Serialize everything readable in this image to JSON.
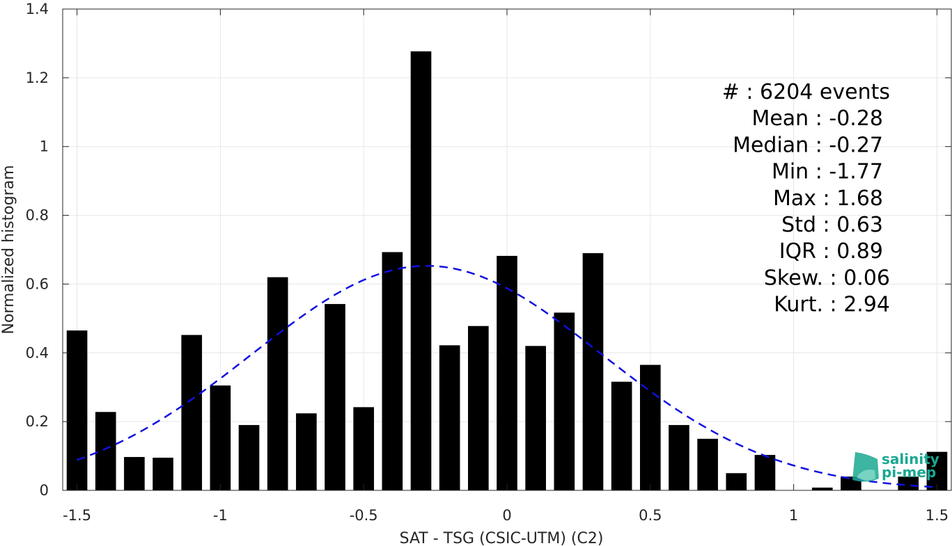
{
  "chart_data": {
    "type": "bar",
    "xlabel": "SAT - TSG (CSIC-UTM) (C2)",
    "ylabel": "Normalized histogram",
    "xlim": [
      -1.55,
      1.55
    ],
    "ylim": [
      0,
      1.4
    ],
    "xticks": [
      -1.5,
      -1,
      -0.5,
      0,
      0.5,
      1,
      1.5
    ],
    "xtick_labels": [
      "-1.5",
      "-1",
      "-0.5",
      "0",
      "0.5",
      "1",
      "1.5"
    ],
    "yticks": [
      0,
      0.2,
      0.4,
      0.6,
      0.8,
      1,
      1.2,
      1.4
    ],
    "ytick_labels": [
      "0",
      "0.2",
      "0.4",
      "0.6",
      "0.8",
      "1",
      "1.2",
      "1.4"
    ],
    "grid": true,
    "bar_color": "#000000",
    "bin_width": 0.1,
    "bin_centers": [
      -1.5,
      -1.4,
      -1.3,
      -1.2,
      -1.1,
      -1.0,
      -0.9,
      -0.8,
      -0.7,
      -0.6,
      -0.5,
      -0.4,
      -0.3,
      -0.2,
      -0.1,
      0.0,
      0.1,
      0.2,
      0.3,
      0.4,
      0.5,
      0.6,
      0.7,
      0.8,
      0.9,
      1.0,
      1.1,
      1.2,
      1.3,
      1.4,
      1.5
    ],
    "values": [
      0.465,
      0.228,
      0.097,
      0.095,
      0.452,
      0.305,
      0.19,
      0.62,
      0.224,
      0.542,
      0.242,
      0.693,
      1.277,
      0.422,
      0.478,
      0.682,
      0.42,
      0.517,
      0.69,
      0.316,
      0.365,
      0.19,
      0.15,
      0.05,
      0.103,
      0.0,
      0.008,
      0.04,
      0.0,
      0.04,
      0.112
    ],
    "fit": {
      "style": "dashed",
      "color": "#1010e0",
      "mean": -0.28,
      "std": 0.61,
      "peak": 0.653,
      "x_range": [
        -1.5,
        1.5
      ]
    },
    "stats": [
      "#  : 6204 events",
      "Mean : -0.28",
      "Median : -0.27",
      "Min : -1.77",
      "Max : 1.68",
      "Std : 0.63",
      "IQR : 0.89",
      "Skew. : 0.06",
      "Kurt. : 2.94"
    ]
  },
  "logo": {
    "line1": "salinity",
    "line2": "pi-mep",
    "color": "#1aa892"
  }
}
